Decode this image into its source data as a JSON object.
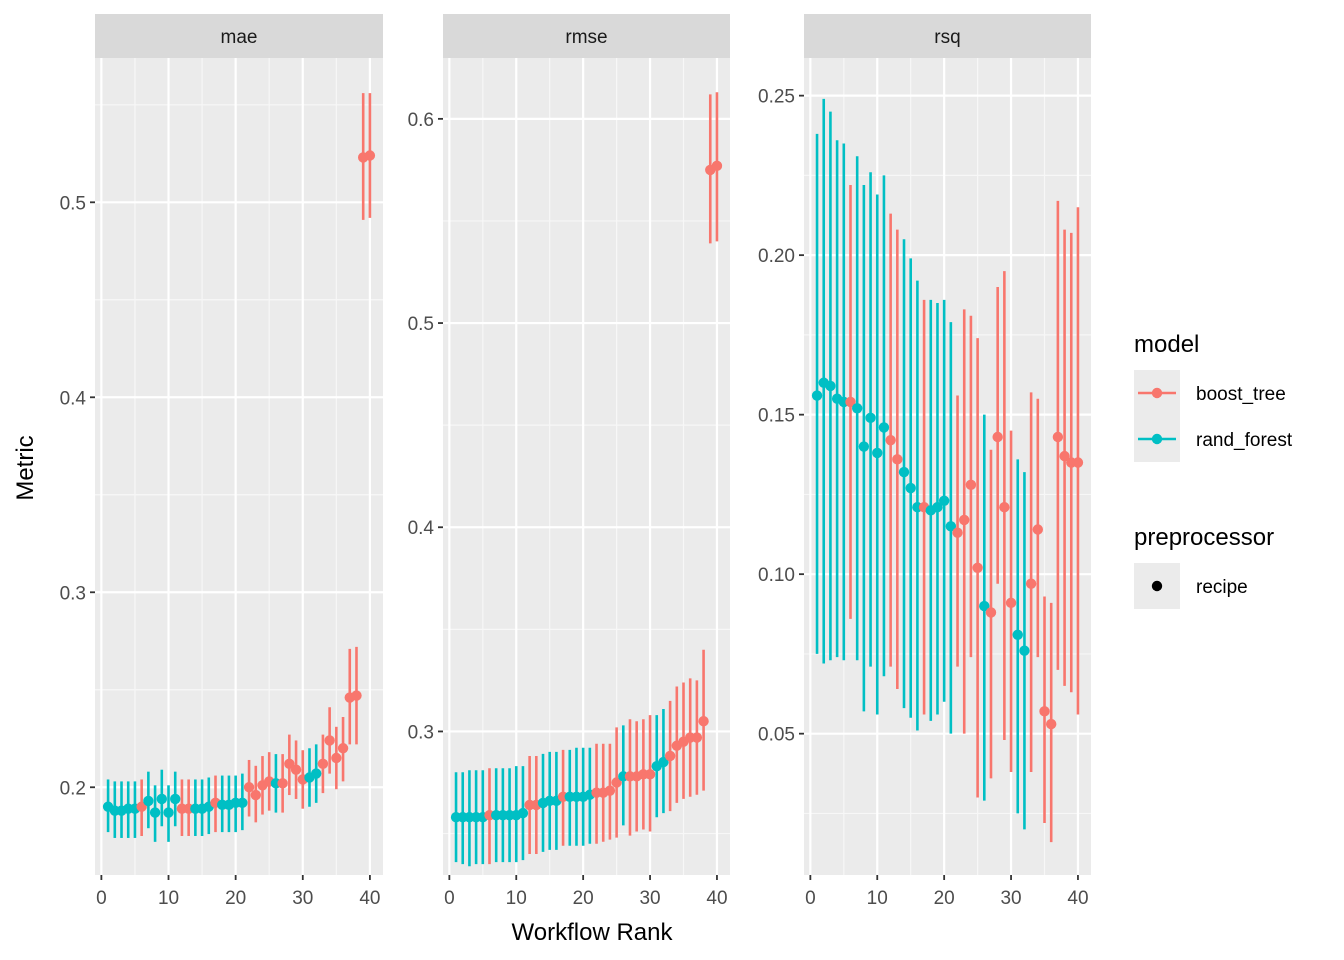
{
  "chart_data": {
    "type": "scatter",
    "xlabel": "Workflow Rank",
    "ylabel": "Metric",
    "x_ticks": [
      0,
      10,
      20,
      30,
      40
    ],
    "colors": {
      "boost_tree": "#F8766D",
      "rand_forest": "#00BFC4"
    },
    "legend": {
      "placement": "right",
      "groups": [
        {
          "title": "model",
          "entries": [
            {
              "label": "boost_tree",
              "color": "#F8766D"
            },
            {
              "label": "rand_forest",
              "color": "#00BFC4"
            }
          ]
        },
        {
          "title": "preprocessor",
          "entries": [
            {
              "label": "recipe",
              "color": "#000000"
            }
          ]
        }
      ]
    },
    "panels": [
      {
        "strip": "mae",
        "y_ticks": [
          "0.2",
          "0.3",
          "0.4",
          "0.5"
        ],
        "xlim": [
          -0.95,
          41.95
        ],
        "ylim": [
          0.155,
          0.574
        ],
        "points": [
          {
            "x": 1,
            "y": 0.19,
            "lo": 0.177,
            "hi": 0.204,
            "m": "rand_forest"
          },
          {
            "x": 2,
            "y": 0.188,
            "lo": 0.174,
            "hi": 0.203,
            "m": "rand_forest"
          },
          {
            "x": 3,
            "y": 0.188,
            "lo": 0.174,
            "hi": 0.203,
            "m": "rand_forest"
          },
          {
            "x": 4,
            "y": 0.189,
            "lo": 0.174,
            "hi": 0.203,
            "m": "rand_forest"
          },
          {
            "x": 5,
            "y": 0.189,
            "lo": 0.174,
            "hi": 0.203,
            "m": "rand_forest"
          },
          {
            "x": 6,
            "y": 0.19,
            "lo": 0.175,
            "hi": 0.204,
            "m": "boost_tree"
          },
          {
            "x": 7,
            "y": 0.193,
            "lo": 0.179,
            "hi": 0.208,
            "m": "rand_forest"
          },
          {
            "x": 8,
            "y": 0.187,
            "lo": 0.172,
            "hi": 0.201,
            "m": "rand_forest"
          },
          {
            "x": 9,
            "y": 0.194,
            "lo": 0.18,
            "hi": 0.209,
            "m": "rand_forest"
          },
          {
            "x": 10,
            "y": 0.187,
            "lo": 0.172,
            "hi": 0.201,
            "m": "rand_forest"
          },
          {
            "x": 11,
            "y": 0.194,
            "lo": 0.18,
            "hi": 0.208,
            "m": "rand_forest"
          },
          {
            "x": 12,
            "y": 0.189,
            "lo": 0.175,
            "hi": 0.204,
            "m": "boost_tree"
          },
          {
            "x": 13,
            "y": 0.189,
            "lo": 0.175,
            "hi": 0.204,
            "m": "boost_tree"
          },
          {
            "x": 14,
            "y": 0.189,
            "lo": 0.175,
            "hi": 0.204,
            "m": "rand_forest"
          },
          {
            "x": 15,
            "y": 0.189,
            "lo": 0.175,
            "hi": 0.204,
            "m": "rand_forest"
          },
          {
            "x": 16,
            "y": 0.19,
            "lo": 0.176,
            "hi": 0.205,
            "m": "rand_forest"
          },
          {
            "x": 17,
            "y": 0.192,
            "lo": 0.177,
            "hi": 0.206,
            "m": "boost_tree"
          },
          {
            "x": 18,
            "y": 0.191,
            "lo": 0.177,
            "hi": 0.206,
            "m": "rand_forest"
          },
          {
            "x": 19,
            "y": 0.191,
            "lo": 0.177,
            "hi": 0.206,
            "m": "rand_forest"
          },
          {
            "x": 20,
            "y": 0.192,
            "lo": 0.177,
            "hi": 0.206,
            "m": "rand_forest"
          },
          {
            "x": 21,
            "y": 0.192,
            "lo": 0.178,
            "hi": 0.207,
            "m": "rand_forest"
          },
          {
            "x": 22,
            "y": 0.2,
            "lo": 0.185,
            "hi": 0.214,
            "m": "boost_tree"
          },
          {
            "x": 23,
            "y": 0.196,
            "lo": 0.182,
            "hi": 0.211,
            "m": "boost_tree"
          },
          {
            "x": 24,
            "y": 0.201,
            "lo": 0.186,
            "hi": 0.216,
            "m": "boost_tree"
          },
          {
            "x": 25,
            "y": 0.203,
            "lo": 0.188,
            "hi": 0.218,
            "m": "boost_tree"
          },
          {
            "x": 26,
            "y": 0.202,
            "lo": 0.187,
            "hi": 0.217,
            "m": "rand_forest"
          },
          {
            "x": 27,
            "y": 0.202,
            "lo": 0.187,
            "hi": 0.217,
            "m": "boost_tree"
          },
          {
            "x": 28,
            "y": 0.212,
            "lo": 0.196,
            "hi": 0.227,
            "m": "boost_tree"
          },
          {
            "x": 29,
            "y": 0.209,
            "lo": 0.194,
            "hi": 0.224,
            "m": "boost_tree"
          },
          {
            "x": 30,
            "y": 0.204,
            "lo": 0.189,
            "hi": 0.219,
            "m": "boost_tree"
          },
          {
            "x": 31,
            "y": 0.205,
            "lo": 0.19,
            "hi": 0.22,
            "m": "rand_forest"
          },
          {
            "x": 32,
            "y": 0.207,
            "lo": 0.192,
            "hi": 0.222,
            "m": "rand_forest"
          },
          {
            "x": 33,
            "y": 0.212,
            "lo": 0.197,
            "hi": 0.227,
            "m": "boost_tree"
          },
          {
            "x": 34,
            "y": 0.224,
            "lo": 0.207,
            "hi": 0.241,
            "m": "boost_tree"
          },
          {
            "x": 35,
            "y": 0.215,
            "lo": 0.199,
            "hi": 0.231,
            "m": "boost_tree"
          },
          {
            "x": 36,
            "y": 0.22,
            "lo": 0.203,
            "hi": 0.236,
            "m": "boost_tree"
          },
          {
            "x": 37,
            "y": 0.246,
            "lo": 0.222,
            "hi": 0.271,
            "m": "boost_tree"
          },
          {
            "x": 38,
            "y": 0.247,
            "lo": 0.222,
            "hi": 0.272,
            "m": "boost_tree"
          },
          {
            "x": 39,
            "y": 0.523,
            "lo": 0.491,
            "hi": 0.556,
            "m": "boost_tree"
          },
          {
            "x": 40,
            "y": 0.524,
            "lo": 0.492,
            "hi": 0.556,
            "m": "boost_tree"
          }
        ]
      },
      {
        "strip": "rmse",
        "y_ticks": [
          "0.3",
          "0.4",
          "0.5",
          "0.6"
        ],
        "xlim": [
          -0.95,
          41.95
        ],
        "ylim": [
          0.2297,
          0.6298
        ],
        "points": [
          {
            "x": 1,
            "y": 0.258,
            "lo": 0.236,
            "hi": 0.28,
            "m": "rand_forest"
          },
          {
            "x": 2,
            "y": 0.258,
            "lo": 0.235,
            "hi": 0.28,
            "m": "rand_forest"
          },
          {
            "x": 3,
            "y": 0.258,
            "lo": 0.234,
            "hi": 0.281,
            "m": "rand_forest"
          },
          {
            "x": 4,
            "y": 0.258,
            "lo": 0.235,
            "hi": 0.281,
            "m": "rand_forest"
          },
          {
            "x": 5,
            "y": 0.258,
            "lo": 0.235,
            "hi": 0.281,
            "m": "rand_forest"
          },
          {
            "x": 6,
            "y": 0.259,
            "lo": 0.235,
            "hi": 0.282,
            "m": "boost_tree"
          },
          {
            "x": 7,
            "y": 0.259,
            "lo": 0.236,
            "hi": 0.282,
            "m": "rand_forest"
          },
          {
            "x": 8,
            "y": 0.259,
            "lo": 0.236,
            "hi": 0.282,
            "m": "rand_forest"
          },
          {
            "x": 9,
            "y": 0.259,
            "lo": 0.236,
            "hi": 0.282,
            "m": "rand_forest"
          },
          {
            "x": 10,
            "y": 0.259,
            "lo": 0.236,
            "hi": 0.283,
            "m": "rand_forest"
          },
          {
            "x": 11,
            "y": 0.26,
            "lo": 0.237,
            "hi": 0.283,
            "m": "rand_forest"
          },
          {
            "x": 12,
            "y": 0.264,
            "lo": 0.24,
            "hi": 0.288,
            "m": "boost_tree"
          },
          {
            "x": 13,
            "y": 0.264,
            "lo": 0.24,
            "hi": 0.288,
            "m": "boost_tree"
          },
          {
            "x": 14,
            "y": 0.265,
            "lo": 0.241,
            "hi": 0.289,
            "m": "rand_forest"
          },
          {
            "x": 15,
            "y": 0.266,
            "lo": 0.242,
            "hi": 0.29,
            "m": "rand_forest"
          },
          {
            "x": 16,
            "y": 0.266,
            "lo": 0.242,
            "hi": 0.29,
            "m": "rand_forest"
          },
          {
            "x": 17,
            "y": 0.268,
            "lo": 0.244,
            "hi": 0.291,
            "m": "boost_tree"
          },
          {
            "x": 18,
            "y": 0.268,
            "lo": 0.244,
            "hi": 0.291,
            "m": "rand_forest"
          },
          {
            "x": 19,
            "y": 0.268,
            "lo": 0.244,
            "hi": 0.292,
            "m": "rand_forest"
          },
          {
            "x": 20,
            "y": 0.268,
            "lo": 0.244,
            "hi": 0.292,
            "m": "rand_forest"
          },
          {
            "x": 21,
            "y": 0.269,
            "lo": 0.245,
            "hi": 0.292,
            "m": "rand_forest"
          },
          {
            "x": 22,
            "y": 0.27,
            "lo": 0.245,
            "hi": 0.294,
            "m": "boost_tree"
          },
          {
            "x": 23,
            "y": 0.27,
            "lo": 0.246,
            "hi": 0.294,
            "m": "boost_tree"
          },
          {
            "x": 24,
            "y": 0.271,
            "lo": 0.247,
            "hi": 0.294,
            "m": "boost_tree"
          },
          {
            "x": 25,
            "y": 0.275,
            "lo": 0.248,
            "hi": 0.302,
            "m": "boost_tree"
          },
          {
            "x": 26,
            "y": 0.278,
            "lo": 0.254,
            "hi": 0.303,
            "m": "rand_forest"
          },
          {
            "x": 27,
            "y": 0.278,
            "lo": 0.249,
            "hi": 0.306,
            "m": "boost_tree"
          },
          {
            "x": 28,
            "y": 0.278,
            "lo": 0.251,
            "hi": 0.305,
            "m": "boost_tree"
          },
          {
            "x": 29,
            "y": 0.279,
            "lo": 0.252,
            "hi": 0.306,
            "m": "boost_tree"
          },
          {
            "x": 30,
            "y": 0.279,
            "lo": 0.251,
            "hi": 0.308,
            "m": "boost_tree"
          },
          {
            "x": 31,
            "y": 0.283,
            "lo": 0.258,
            "hi": 0.308,
            "m": "rand_forest"
          },
          {
            "x": 32,
            "y": 0.285,
            "lo": 0.26,
            "hi": 0.311,
            "m": "rand_forest"
          },
          {
            "x": 33,
            "y": 0.288,
            "lo": 0.261,
            "hi": 0.315,
            "m": "boost_tree"
          },
          {
            "x": 34,
            "y": 0.293,
            "lo": 0.265,
            "hi": 0.322,
            "m": "boost_tree"
          },
          {
            "x": 35,
            "y": 0.295,
            "lo": 0.267,
            "hi": 0.324,
            "m": "boost_tree"
          },
          {
            "x": 36,
            "y": 0.297,
            "lo": 0.268,
            "hi": 0.326,
            "m": "boost_tree"
          },
          {
            "x": 37,
            "y": 0.297,
            "lo": 0.269,
            "hi": 0.325,
            "m": "boost_tree"
          },
          {
            "x": 38,
            "y": 0.305,
            "lo": 0.271,
            "hi": 0.34,
            "m": "boost_tree"
          },
          {
            "x": 39,
            "y": 0.575,
            "lo": 0.539,
            "hi": 0.612,
            "m": "boost_tree"
          },
          {
            "x": 40,
            "y": 0.577,
            "lo": 0.54,
            "hi": 0.613,
            "m": "boost_tree"
          }
        ]
      },
      {
        "strip": "rsq",
        "y_ticks": [
          "0.05",
          "0.10",
          "0.15",
          "0.20",
          "0.25"
        ],
        "xlim": [
          -0.95,
          41.95
        ],
        "ylim": [
          0.0057,
          0.2618
        ],
        "points": [
          {
            "x": 1,
            "y": 0.156,
            "lo": 0.075,
            "hi": 0.238,
            "m": "rand_forest"
          },
          {
            "x": 2,
            "y": 0.16,
            "lo": 0.072,
            "hi": 0.249,
            "m": "rand_forest"
          },
          {
            "x": 3,
            "y": 0.159,
            "lo": 0.073,
            "hi": 0.245,
            "m": "rand_forest"
          },
          {
            "x": 4,
            "y": 0.155,
            "lo": 0.074,
            "hi": 0.236,
            "m": "rand_forest"
          },
          {
            "x": 5,
            "y": 0.154,
            "lo": 0.073,
            "hi": 0.235,
            "m": "rand_forest"
          },
          {
            "x": 6,
            "y": 0.154,
            "lo": 0.086,
            "hi": 0.222,
            "m": "boost_tree"
          },
          {
            "x": 7,
            "y": 0.152,
            "lo": 0.073,
            "hi": 0.231,
            "m": "rand_forest"
          },
          {
            "x": 8,
            "y": 0.14,
            "lo": 0.057,
            "hi": 0.222,
            "m": "rand_forest"
          },
          {
            "x": 9,
            "y": 0.149,
            "lo": 0.071,
            "hi": 0.226,
            "m": "rand_forest"
          },
          {
            "x": 10,
            "y": 0.138,
            "lo": 0.056,
            "hi": 0.219,
            "m": "rand_forest"
          },
          {
            "x": 11,
            "y": 0.146,
            "lo": 0.068,
            "hi": 0.225,
            "m": "rand_forest"
          },
          {
            "x": 12,
            "y": 0.142,
            "lo": 0.071,
            "hi": 0.213,
            "m": "boost_tree"
          },
          {
            "x": 13,
            "y": 0.136,
            "lo": 0.064,
            "hi": 0.208,
            "m": "boost_tree"
          },
          {
            "x": 14,
            "y": 0.132,
            "lo": 0.058,
            "hi": 0.205,
            "m": "rand_forest"
          },
          {
            "x": 15,
            "y": 0.127,
            "lo": 0.055,
            "hi": 0.199,
            "m": "rand_forest"
          },
          {
            "x": 16,
            "y": 0.121,
            "lo": 0.051,
            "hi": 0.192,
            "m": "rand_forest"
          },
          {
            "x": 17,
            "y": 0.121,
            "lo": 0.056,
            "hi": 0.186,
            "m": "boost_tree"
          },
          {
            "x": 18,
            "y": 0.12,
            "lo": 0.054,
            "hi": 0.186,
            "m": "rand_forest"
          },
          {
            "x": 19,
            "y": 0.121,
            "lo": 0.056,
            "hi": 0.185,
            "m": "rand_forest"
          },
          {
            "x": 20,
            "y": 0.123,
            "lo": 0.06,
            "hi": 0.186,
            "m": "rand_forest"
          },
          {
            "x": 21,
            "y": 0.115,
            "lo": 0.05,
            "hi": 0.179,
            "m": "rand_forest"
          },
          {
            "x": 22,
            "y": 0.113,
            "lo": 0.071,
            "hi": 0.156,
            "m": "boost_tree"
          },
          {
            "x": 23,
            "y": 0.117,
            "lo": 0.05,
            "hi": 0.183,
            "m": "boost_tree"
          },
          {
            "x": 24,
            "y": 0.128,
            "lo": 0.074,
            "hi": 0.181,
            "m": "boost_tree"
          },
          {
            "x": 25,
            "y": 0.102,
            "lo": 0.03,
            "hi": 0.174,
            "m": "boost_tree"
          },
          {
            "x": 26,
            "y": 0.09,
            "lo": 0.029,
            "hi": 0.15,
            "m": "rand_forest"
          },
          {
            "x": 27,
            "y": 0.088,
            "lo": 0.036,
            "hi": 0.139,
            "m": "boost_tree"
          },
          {
            "x": 28,
            "y": 0.143,
            "lo": 0.097,
            "hi": 0.19,
            "m": "boost_tree"
          },
          {
            "x": 29,
            "y": 0.121,
            "lo": 0.048,
            "hi": 0.195,
            "m": "boost_tree"
          },
          {
            "x": 30,
            "y": 0.091,
            "lo": 0.038,
            "hi": 0.145,
            "m": "boost_tree"
          },
          {
            "x": 31,
            "y": 0.081,
            "lo": 0.025,
            "hi": 0.136,
            "m": "rand_forest"
          },
          {
            "x": 32,
            "y": 0.076,
            "lo": 0.02,
            "hi": 0.132,
            "m": "rand_forest"
          },
          {
            "x": 33,
            "y": 0.097,
            "lo": 0.038,
            "hi": 0.157,
            "m": "boost_tree"
          },
          {
            "x": 34,
            "y": 0.114,
            "lo": 0.074,
            "hi": 0.155,
            "m": "boost_tree"
          },
          {
            "x": 35,
            "y": 0.057,
            "lo": 0.022,
            "hi": 0.093,
            "m": "boost_tree"
          },
          {
            "x": 36,
            "y": 0.053,
            "lo": 0.016,
            "hi": 0.091,
            "m": "boost_tree"
          },
          {
            "x": 37,
            "y": 0.143,
            "lo": 0.07,
            "hi": 0.217,
            "m": "boost_tree"
          },
          {
            "x": 38,
            "y": 0.137,
            "lo": 0.065,
            "hi": 0.208,
            "m": "boost_tree"
          },
          {
            "x": 39,
            "y": 0.135,
            "lo": 0.063,
            "hi": 0.207,
            "m": "boost_tree"
          },
          {
            "x": 40,
            "y": 0.135,
            "lo": 0.056,
            "hi": 0.215,
            "m": "boost_tree"
          }
        ]
      }
    ]
  }
}
